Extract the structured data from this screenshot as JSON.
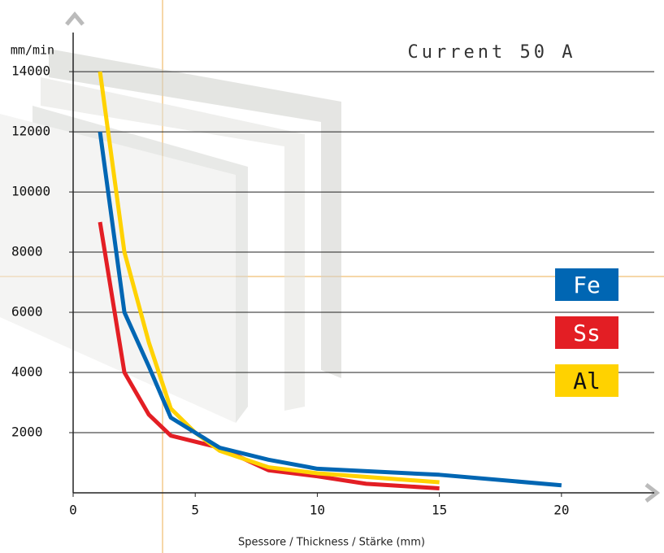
{
  "chart_data": {
    "type": "line",
    "title": "Current 50 A",
    "y_label": "mm/min",
    "x_label": "Spessore / Thickness / Stärke (mm)",
    "xlim": [
      0,
      23.8
    ],
    "ylim": [
      0,
      15300
    ],
    "xticks": [
      0,
      5,
      10,
      15,
      20
    ],
    "yticks": [
      2000,
      4000,
      6000,
      8000,
      10000,
      12000,
      14000
    ],
    "grid": true,
    "series": [
      {
        "name": "Fe",
        "color": "#0066b3",
        "x": [
          1.1,
          2.1,
          3.1,
          4,
          5,
          6,
          8,
          10,
          15,
          20
        ],
        "values": [
          12000,
          6000,
          4200,
          2500,
          2000,
          1500,
          1100,
          800,
          600,
          250
        ]
      },
      {
        "name": "Ss",
        "color": "#e31e24",
        "x": [
          1.1,
          2.1,
          3.1,
          4,
          6,
          8,
          10,
          12,
          15
        ],
        "values": [
          9000,
          4000,
          2600,
          1900,
          1500,
          750,
          550,
          300,
          150
        ]
      },
      {
        "name": "Al",
        "color": "#ffd200",
        "x": [
          1.1,
          2.1,
          3.1,
          4,
          5,
          6,
          8,
          10,
          15
        ],
        "values": [
          14000,
          8000,
          5000,
          2800,
          2000,
          1400,
          850,
          650,
          350
        ]
      }
    ]
  }
}
